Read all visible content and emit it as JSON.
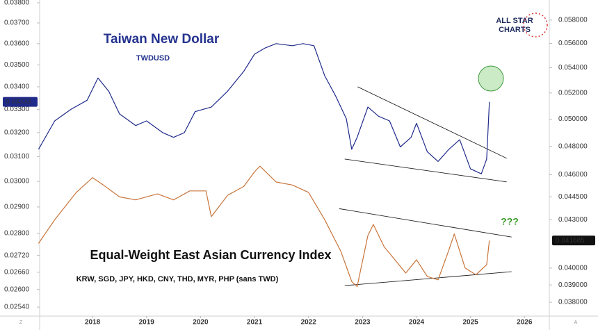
{
  "chart_data": {
    "type": "line",
    "ylog": true,
    "y2log": true,
    "xlim": [
      2017.02,
      2026.46
    ],
    "xticks": [
      2018,
      2019,
      2020,
      2021,
      2022,
      2023,
      2024,
      2025,
      2026
    ],
    "ylim": [
      0.0251,
      0.03814
    ],
    "yticks": [
      {
        "value": 0.038,
        "label": "0.03800"
      },
      {
        "value": 0.037,
        "label": "0.03700"
      },
      {
        "value": 0.036,
        "label": "0.03600"
      },
      {
        "value": 0.035,
        "label": "0.03500"
      },
      {
        "value": 0.034,
        "label": "0.03400"
      },
      {
        "value": 0.033,
        "label": "0.03300"
      },
      {
        "value": 0.032,
        "label": "0.03200"
      },
      {
        "value": 0.031,
        "label": "0.03100"
      },
      {
        "value": 0.03,
        "label": "0.03000"
      },
      {
        "value": 0.029,
        "label": "0.02900"
      },
      {
        "value": 0.028,
        "label": "0.02800"
      },
      {
        "value": 0.0272,
        "label": "0.02720"
      },
      {
        "value": 0.0266,
        "label": "0.02660"
      },
      {
        "value": 0.026,
        "label": "0.02600"
      },
      {
        "value": 0.0254,
        "label": "0.02540"
      }
    ],
    "y2lim": [
      0.03722,
      0.05977
    ],
    "y2ticks": [
      {
        "value": 0.058,
        "label": "0.058000"
      },
      {
        "value": 0.056,
        "label": "0.056000"
      },
      {
        "value": 0.054,
        "label": "0.054000"
      },
      {
        "value": 0.052,
        "label": "0.052000"
      },
      {
        "value": 0.05,
        "label": "0.050000"
      },
      {
        "value": 0.048,
        "label": "0.048000"
      },
      {
        "value": 0.046,
        "label": "0.046000"
      },
      {
        "value": 0.0445,
        "label": "0.044500"
      },
      {
        "value": 0.043,
        "label": "0.043000"
      },
      {
        "value": 0.04,
        "label": "0.040000"
      },
      {
        "value": 0.039,
        "label": "0.039000"
      },
      {
        "value": 0.038,
        "label": "0.038000"
      }
    ],
    "series": [
      {
        "name": "Taiwan New Dollar",
        "ticker": "TWDUSD",
        "color": "#1f2a8a",
        "axis": "y",
        "x": [
          2017.0,
          2017.3,
          2017.6,
          2017.9,
          2018.1,
          2018.3,
          2018.5,
          2018.8,
          2019.0,
          2019.3,
          2019.5,
          2019.7,
          2019.9,
          2020.2,
          2020.5,
          2020.8,
          2021.0,
          2021.2,
          2021.4,
          2021.7,
          2021.9,
          2022.1,
          2022.3,
          2022.5,
          2022.7,
          2022.8,
          2022.9,
          2023.1,
          2023.3,
          2023.5,
          2023.7,
          2023.9,
          2024.0,
          2024.2,
          2024.4,
          2024.6,
          2024.8,
          2025.0,
          2025.2,
          2025.3,
          2025.35
        ],
        "values": [
          0.0313,
          0.0325,
          0.033,
          0.0334,
          0.0344,
          0.0338,
          0.0328,
          0.0323,
          0.0325,
          0.032,
          0.0318,
          0.032,
          0.0329,
          0.0331,
          0.0338,
          0.0347,
          0.0355,
          0.0358,
          0.036,
          0.0359,
          0.036,
          0.0359,
          0.0345,
          0.0336,
          0.0326,
          0.0313,
          0.0318,
          0.0331,
          0.0327,
          0.0325,
          0.0314,
          0.0318,
          0.0324,
          0.0312,
          0.0308,
          0.0313,
          0.0317,
          0.0305,
          0.0303,
          0.0309,
          0.03333
        ]
      },
      {
        "name": "Equal-Weight East Asian Currency Index",
        "components": "KRW, SGD, JPY, HKD, CNY, THD, MYR, PHP (sans TWD)",
        "color": "#c8743a",
        "axis": "y2",
        "x": [
          2017.0,
          2017.3,
          2017.7,
          2018.0,
          2018.2,
          2018.5,
          2018.8,
          2019.2,
          2019.5,
          2019.8,
          2020.1,
          2020.2,
          2020.5,
          2020.8,
          2021.0,
          2021.1,
          2021.4,
          2021.7,
          2022.0,
          2022.3,
          2022.6,
          2022.8,
          2022.9,
          2023.1,
          2023.2,
          2023.4,
          2023.6,
          2023.8,
          2024.0,
          2024.2,
          2024.4,
          2024.6,
          2024.7,
          2024.9,
          2025.1,
          2025.3,
          2025.35
        ],
        "values": [
          0.0415,
          0.043,
          0.0448,
          0.0458,
          0.0453,
          0.0445,
          0.0443,
          0.0447,
          0.0443,
          0.0449,
          0.0449,
          0.0432,
          0.0446,
          0.0452,
          0.0462,
          0.0466,
          0.0455,
          0.0453,
          0.0448,
          0.043,
          0.041,
          0.0392,
          0.0389,
          0.042,
          0.0427,
          0.0413,
          0.0405,
          0.0397,
          0.0405,
          0.0395,
          0.0393,
          0.0411,
          0.0421,
          0.04,
          0.0396,
          0.0402,
          0.041685
        ]
      }
    ],
    "trendlines": [
      {
        "axis": "y",
        "x": [
          2022.91,
          2025.67
        ],
        "y": [
          0.034,
          0.03093
        ]
      },
      {
        "axis": "y",
        "x": [
          2022.67,
          2025.67
        ],
        "y": [
          0.0309,
          0.02998
        ]
      },
      {
        "axis": "y2",
        "x": [
          2022.57,
          2025.76
        ],
        "y": [
          0.04372,
          0.0419
        ]
      },
      {
        "axis": "y2",
        "x": [
          2022.67,
          2025.76
        ],
        "y": [
          0.03896,
          0.03978
        ]
      }
    ],
    "annotation": "???",
    "logo": [
      "ALL STAR",
      "CHARTS"
    ],
    "corner_left": "Z",
    "corner_right": "A"
  }
}
